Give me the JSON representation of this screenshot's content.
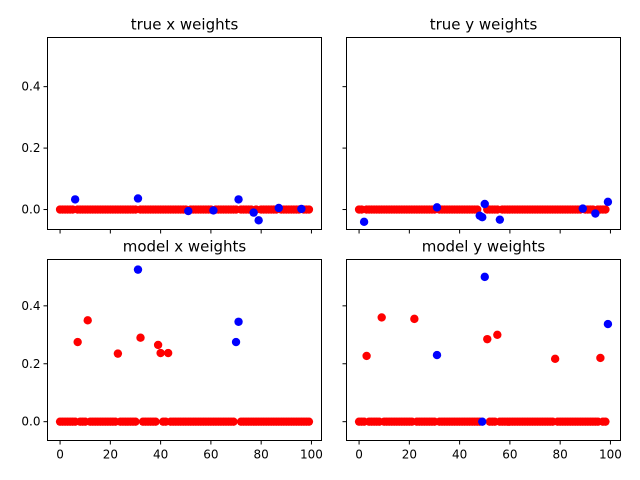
{
  "chart_data": [
    {
      "type": "scatter",
      "title": "true x weights",
      "xlim": [
        -5,
        104
      ],
      "ylim": [
        -0.065,
        0.56
      ],
      "xticks": [
        0,
        20,
        40,
        60,
        80,
        100
      ],
      "yticks": [
        0.0,
        0.2,
        0.4
      ],
      "ytick_labels": [
        "0.0",
        "0.2",
        "0.4"
      ],
      "show_xtick_labels": false,
      "show_ytick_labels": true,
      "blue_points": [
        [
          6,
          0.033
        ],
        [
          31,
          0.036
        ],
        [
          51,
          -0.005
        ],
        [
          61,
          -0.003
        ],
        [
          71,
          0.033
        ],
        [
          77,
          -0.01
        ],
        [
          79,
          -0.035
        ],
        [
          87,
          0.005
        ],
        [
          96,
          0.002
        ]
      ],
      "red_zero_x": [
        0,
        1,
        2,
        3,
        4,
        5,
        7,
        8,
        9,
        10,
        11,
        12,
        13,
        14,
        15,
        16,
        17,
        18,
        19,
        20,
        21,
        22,
        23,
        24,
        25,
        26,
        27,
        28,
        29,
        30,
        32,
        33,
        34,
        35,
        36,
        37,
        38,
        39,
        40,
        41,
        42,
        43,
        44,
        45,
        46,
        47,
        48,
        49,
        50,
        52,
        53,
        54,
        55,
        56,
        57,
        58,
        59,
        60,
        62,
        63,
        64,
        65,
        66,
        67,
        68,
        69,
        70,
        72,
        73,
        74,
        75,
        76,
        78,
        80,
        81,
        82,
        83,
        84,
        85,
        86,
        88,
        89,
        90,
        91,
        92,
        93,
        94,
        95,
        97,
        98,
        99
      ]
    },
    {
      "type": "scatter",
      "title": "true y weights",
      "xlim": [
        -5,
        104
      ],
      "ylim": [
        -0.065,
        0.56
      ],
      "xticks": [
        0,
        20,
        40,
        60,
        80,
        100
      ],
      "yticks": [
        0.0,
        0.2,
        0.4
      ],
      "ytick_labels": [
        "0.0",
        "0.2",
        "0.4"
      ],
      "show_xtick_labels": false,
      "show_ytick_labels": false,
      "blue_points": [
        [
          2,
          -0.04
        ],
        [
          31,
          0.007
        ],
        [
          48,
          -0.02
        ],
        [
          49,
          -0.025
        ],
        [
          50,
          0.018
        ],
        [
          56,
          -0.033
        ],
        [
          89,
          0.003
        ],
        [
          94,
          -0.013
        ],
        [
          99,
          0.025
        ]
      ],
      "red_zero_x": [
        0,
        1,
        3,
        4,
        5,
        6,
        7,
        8,
        9,
        10,
        11,
        12,
        13,
        14,
        15,
        16,
        17,
        18,
        19,
        20,
        21,
        22,
        23,
        24,
        25,
        26,
        27,
        28,
        29,
        30,
        32,
        33,
        34,
        35,
        36,
        37,
        38,
        39,
        40,
        41,
        42,
        43,
        44,
        45,
        46,
        47,
        51,
        52,
        53,
        54,
        55,
        57,
        58,
        59,
        60,
        61,
        62,
        63,
        64,
        65,
        66,
        67,
        68,
        69,
        70,
        71,
        72,
        73,
        74,
        75,
        76,
        77,
        78,
        79,
        80,
        81,
        82,
        83,
        84,
        85,
        86,
        87,
        88,
        90,
        91,
        92,
        93,
        95,
        96,
        97,
        98
      ]
    },
    {
      "type": "scatter",
      "title": "model x weights",
      "xlim": [
        -5,
        104
      ],
      "ylim": [
        -0.065,
        0.56
      ],
      "xticks": [
        0,
        20,
        40,
        60,
        80,
        100
      ],
      "xtick_labels": [
        "0",
        "20",
        "40",
        "60",
        "80",
        "100"
      ],
      "yticks": [
        0.0,
        0.2,
        0.4
      ],
      "ytick_labels": [
        "0.0",
        "0.2",
        "0.4"
      ],
      "show_xtick_labels": true,
      "show_ytick_labels": true,
      "blue_points": [
        [
          31,
          0.525
        ],
        [
          70,
          0.275
        ],
        [
          71,
          0.345
        ]
      ],
      "red_points": [
        [
          7,
          0.275
        ],
        [
          11,
          0.35
        ],
        [
          23,
          0.235
        ],
        [
          32,
          0.29
        ],
        [
          39,
          0.265
        ],
        [
          40,
          0.237
        ],
        [
          43,
          0.237
        ]
      ],
      "red_zero_x": [
        0,
        1,
        2,
        3,
        4,
        5,
        6,
        8,
        9,
        10,
        12,
        13,
        14,
        15,
        16,
        17,
        18,
        19,
        20,
        21,
        22,
        24,
        25,
        26,
        27,
        28,
        29,
        30,
        33,
        34,
        35,
        36,
        37,
        38,
        41,
        42,
        44,
        45,
        46,
        47,
        48,
        49,
        50,
        51,
        52,
        53,
        54,
        55,
        56,
        57,
        58,
        59,
        60,
        61,
        62,
        63,
        64,
        65,
        66,
        67,
        68,
        69,
        72,
        73,
        74,
        75,
        76,
        77,
        78,
        79,
        80,
        81,
        82,
        83,
        84,
        85,
        86,
        87,
        88,
        89,
        90,
        91,
        92,
        93,
        94,
        95,
        96,
        97,
        98,
        99
      ]
    },
    {
      "type": "scatter",
      "title": "model y weights",
      "xlim": [
        -5,
        104
      ],
      "ylim": [
        -0.065,
        0.56
      ],
      "xticks": [
        0,
        20,
        40,
        60,
        80,
        100
      ],
      "xtick_labels": [
        "0",
        "20",
        "40",
        "60",
        "80",
        "100"
      ],
      "yticks": [
        0.0,
        0.2,
        0.4
      ],
      "ytick_labels": [
        "0.0",
        "0.2",
        "0.4"
      ],
      "show_xtick_labels": true,
      "show_ytick_labels": false,
      "blue_points": [
        [
          31,
          0.23
        ],
        [
          50,
          0.5
        ],
        [
          99,
          0.337
        ],
        [
          49,
          0.0
        ]
      ],
      "red_points": [
        [
          3,
          0.227
        ],
        [
          9,
          0.36
        ],
        [
          22,
          0.355
        ],
        [
          51,
          0.285
        ],
        [
          55,
          0.3
        ],
        [
          78,
          0.217
        ],
        [
          96,
          0.22
        ]
      ],
      "red_zero_x": [
        0,
        1,
        2,
        4,
        5,
        6,
        7,
        8,
        10,
        11,
        12,
        13,
        14,
        15,
        16,
        17,
        18,
        19,
        20,
        21,
        23,
        24,
        25,
        26,
        27,
        28,
        29,
        30,
        32,
        33,
        34,
        35,
        36,
        37,
        38,
        39,
        40,
        41,
        42,
        43,
        44,
        45,
        46,
        47,
        48,
        52,
        53,
        54,
        56,
        57,
        58,
        59,
        60,
        61,
        62,
        63,
        64,
        65,
        66,
        67,
        68,
        69,
        70,
        71,
        72,
        73,
        74,
        75,
        76,
        77,
        79,
        80,
        81,
        82,
        83,
        84,
        85,
        86,
        87,
        88,
        89,
        90,
        91,
        92,
        93,
        94,
        95,
        97,
        98
      ]
    }
  ],
  "colors": {
    "blue": "#0000ff",
    "red": "#ff0000"
  }
}
